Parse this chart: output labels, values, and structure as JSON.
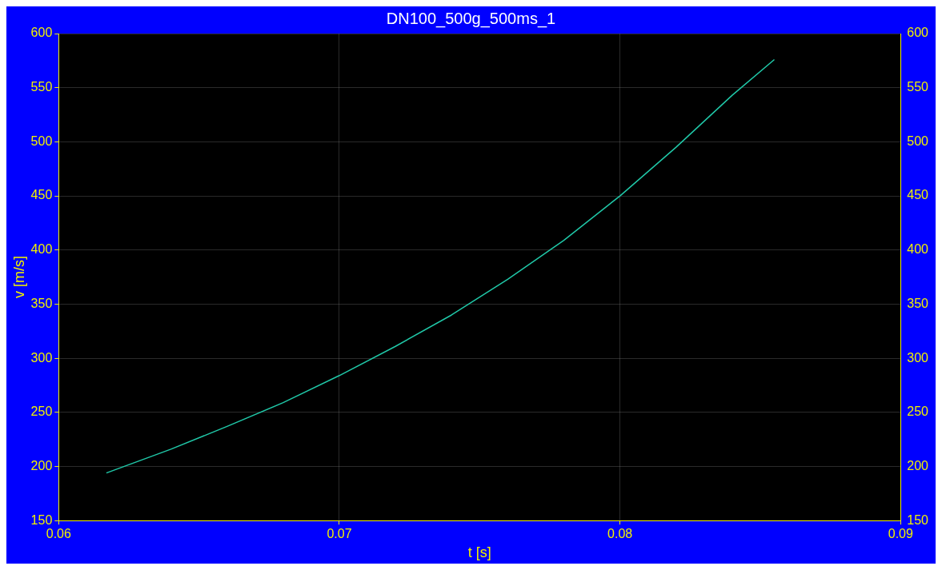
{
  "chart_data": {
    "type": "line",
    "title": "DN100_500g_500ms_1",
    "xlabel": "t [s]",
    "ylabel": "v [m/s]",
    "series": [
      {
        "color": "#20c8a8",
        "x": [
          0.0617,
          0.064,
          0.066,
          0.068,
          0.07,
          0.072,
          0.074,
          0.076,
          0.078,
          0.08,
          0.082,
          0.084,
          0.0855
        ],
        "values": [
          194,
          216,
          237,
          259,
          284,
          311,
          340,
          373,
          409,
          450,
          495,
          543,
          576
        ]
      }
    ],
    "xlim": [
      0.06,
      0.09
    ],
    "xticks": [
      0.06,
      0.07,
      0.08,
      0.09
    ],
    "ylim": [
      150,
      600
    ],
    "yticks": [
      150,
      200,
      250,
      300,
      350,
      400,
      450,
      500,
      550,
      600
    ],
    "y2lim": [
      150,
      600
    ],
    "y2ticks": [
      150,
      200,
      250,
      300,
      350,
      400,
      450,
      500,
      550,
      600
    ],
    "grid": true,
    "legend": false
  }
}
